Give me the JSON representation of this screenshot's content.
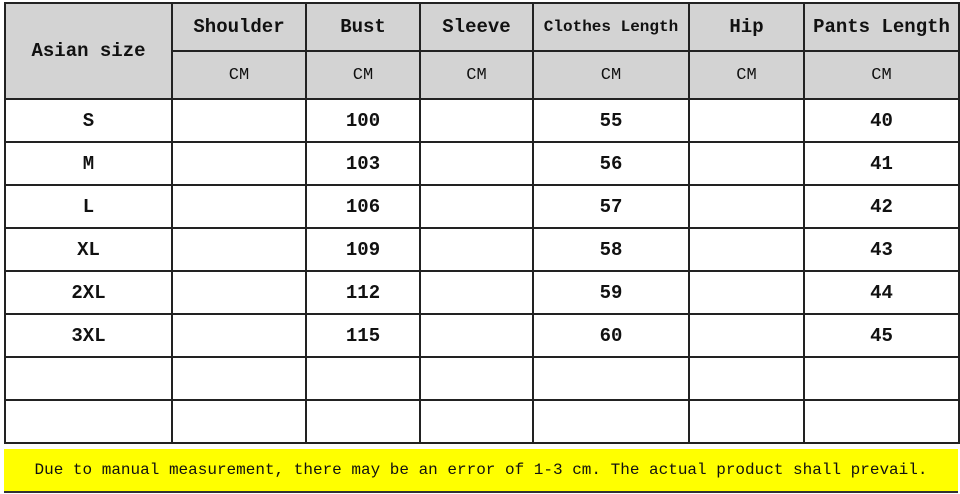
{
  "table": {
    "size_header": "Asian size",
    "columns": [
      "Shoulder",
      "Bust",
      "Sleeve",
      "Clothes Length",
      "Hip",
      "Pants Length"
    ],
    "units": [
      "CM",
      "CM",
      "CM",
      "CM",
      "CM",
      "CM"
    ],
    "rows": [
      {
        "size": "S",
        "values": [
          "",
          "100",
          "",
          "55",
          "",
          "40"
        ]
      },
      {
        "size": "M",
        "values": [
          "",
          "103",
          "",
          "56",
          "",
          "41"
        ]
      },
      {
        "size": "L",
        "values": [
          "",
          "106",
          "",
          "57",
          "",
          "42"
        ]
      },
      {
        "size": "XL",
        "values": [
          "",
          "109",
          "",
          "58",
          "",
          "43"
        ]
      },
      {
        "size": "2XL",
        "values": [
          "",
          "112",
          "",
          "59",
          "",
          "44"
        ]
      },
      {
        "size": "3XL",
        "values": [
          "",
          "115",
          "",
          "60",
          "",
          "45"
        ]
      },
      {
        "size": "",
        "values": [
          "",
          "",
          "",
          "",
          "",
          ""
        ]
      },
      {
        "size": "",
        "values": [
          "",
          "",
          "",
          "",
          "",
          ""
        ]
      }
    ]
  },
  "note": "Due to manual measurement, there may be an error of 1-3 cm. The actual product shall prevail.",
  "colors": {
    "header_bg": "#d3d3d3",
    "note_bg": "#ffff00"
  }
}
